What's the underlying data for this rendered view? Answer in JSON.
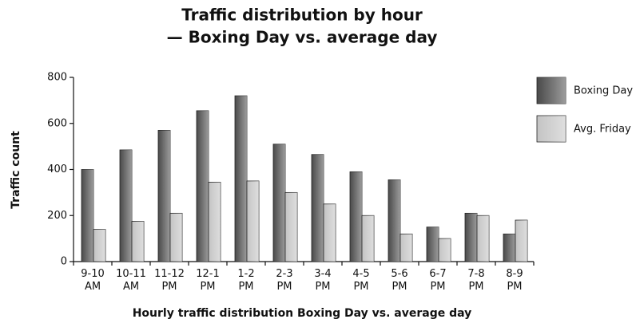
{
  "chart_data": {
    "type": "bar",
    "title": "Traffic distribution by hour",
    "subtitle": "— Boxing Day vs. average day",
    "x_label": "Hourly traffic distribution Boxing Day vs. average day",
    "y_label": "Traffic count",
    "categories": [
      "9-10 AM",
      "10-11 AM",
      "11-12 PM",
      "12-1 PM",
      "1-2 PM",
      "2-3 PM",
      "3-4 PM",
      "4-5 PM",
      "5-6 PM",
      "6-7 PM",
      "7-8 PM",
      "8-9 PM"
    ],
    "series": [
      {
        "name": "Boxing Day",
        "color": "#4a4a4a",
        "values": [
          400,
          485,
          570,
          655,
          720,
          510,
          465,
          390,
          355,
          150,
          210,
          120
        ]
      },
      {
        "name": "Avg. Friday",
        "color": "#c4c4c4",
        "values": [
          140,
          175,
          210,
          345,
          350,
          300,
          250,
          200,
          120,
          100,
          200,
          180
        ]
      }
    ],
    "ylim": [
      0,
      800
    ],
    "yticks": [
      0,
      200,
      400,
      600,
      800
    ],
    "grid": false,
    "legend": "right"
  }
}
